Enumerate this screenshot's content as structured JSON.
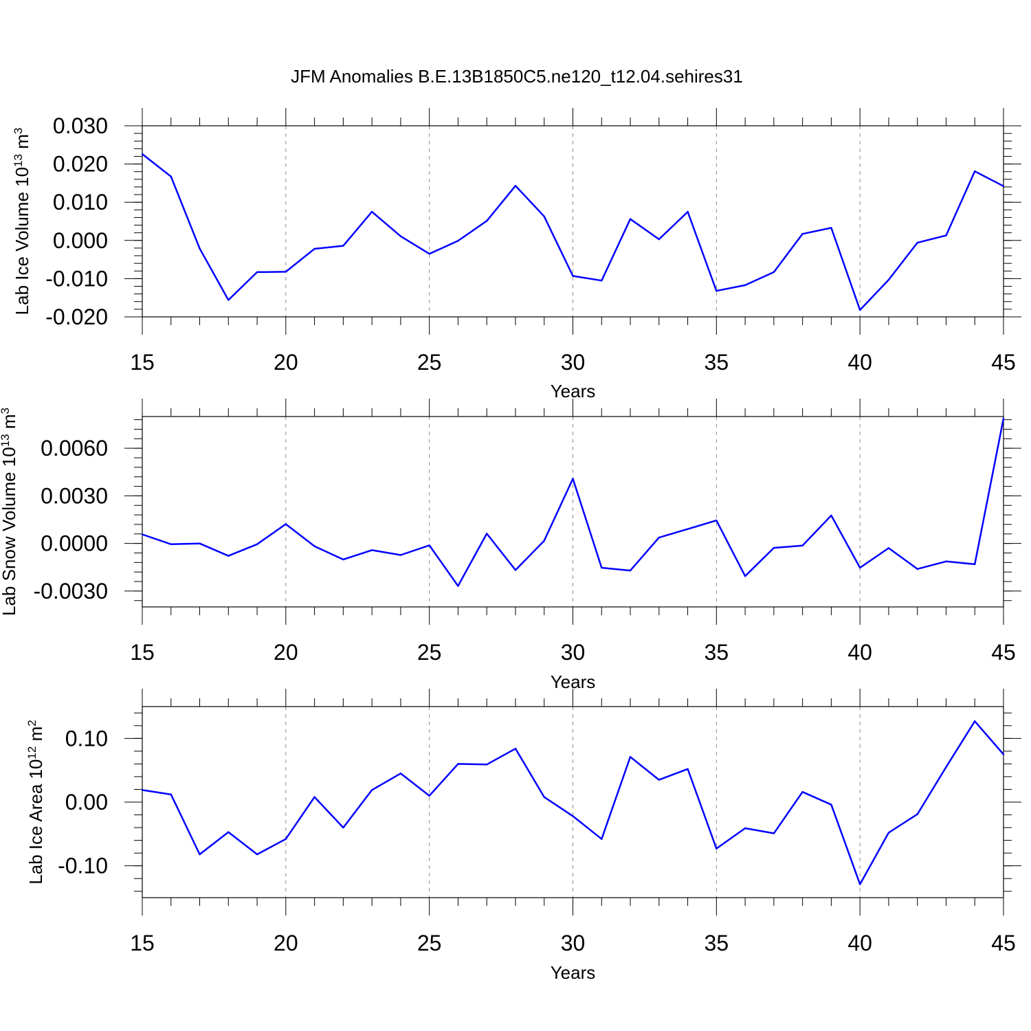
{
  "title": "JFM Anomalies B.E.13B1850C5.ne120_t12.04.sehires31",
  "colors": {
    "line": "#0000ff",
    "axis": "#000000",
    "grid": "#888888"
  },
  "chart_data": [
    {
      "type": "line",
      "ylabel": {
        "main": "Lab Ice Volume 10",
        "exp": "13",
        "unit": " m",
        "unit_exp": "3"
      },
      "xlabel": "Years",
      "xlim": [
        15,
        45
      ],
      "ylim": [
        -0.02,
        0.03
      ],
      "x_ticks": [
        "15",
        "20",
        "25",
        "30",
        "35",
        "40",
        "45"
      ],
      "y_ticks": [
        "0.030",
        "0.020",
        "0.010",
        "0.000",
        "-0.010",
        "-0.020"
      ],
      "y_tick_values": [
        0.03,
        0.02,
        0.01,
        0.0,
        -0.01,
        -0.02
      ],
      "y_minor_step": 0.002,
      "grid": "vertical-dashed",
      "x": [
        15,
        16,
        17,
        18,
        19,
        20,
        21,
        22,
        23,
        24,
        25,
        26,
        27,
        28,
        29,
        30,
        31,
        32,
        33,
        34,
        35,
        36,
        37,
        38,
        39,
        40,
        41,
        42,
        43,
        44,
        45
      ],
      "values": [
        0.0226,
        0.0167,
        -0.0021,
        -0.0156,
        -0.0083,
        -0.0082,
        -0.0022,
        -0.0014,
        0.0075,
        0.0011,
        -0.0035,
        -0.0001,
        0.0051,
        0.0143,
        0.0063,
        -0.0093,
        -0.0105,
        0.0056,
        0.0003,
        0.0075,
        -0.0132,
        -0.0117,
        -0.0083,
        0.0017,
        0.0033,
        -0.0182,
        -0.0103,
        -0.0006,
        0.0013,
        0.0181,
        0.0142
      ]
    },
    {
      "type": "line",
      "ylabel": {
        "main": "Lab Snow Volume 10",
        "exp": "13",
        "unit": " m",
        "unit_exp": "3"
      },
      "xlabel": "Years",
      "xlim": [
        15,
        45
      ],
      "ylim": [
        -0.004,
        0.008
      ],
      "x_ticks": [
        "15",
        "20",
        "25",
        "30",
        "35",
        "40",
        "45"
      ],
      "y_ticks": [
        "0.0060",
        "0.0030",
        "0.0000",
        "-0.0030"
      ],
      "y_tick_values": [
        0.006,
        0.003,
        0.0,
        -0.003
      ],
      "y_minor_step": 0.0006,
      "grid": "vertical-dashed",
      "x": [
        15,
        16,
        17,
        18,
        19,
        20,
        21,
        22,
        23,
        24,
        25,
        26,
        27,
        28,
        29,
        30,
        31,
        32,
        33,
        34,
        35,
        36,
        37,
        38,
        39,
        40,
        41,
        42,
        43,
        44,
        45
      ],
      "values": [
        0.00057,
        -5e-05,
        0.0,
        -0.00078,
        -5e-05,
        0.00122,
        -0.00018,
        -0.00101,
        -0.00042,
        -0.00073,
        -0.00012,
        -0.00268,
        0.00062,
        -0.00168,
        0.00017,
        0.00408,
        -0.00153,
        -0.00171,
        0.00037,
        0.00091,
        0.00145,
        -0.00206,
        -0.00028,
        -0.00013,
        0.00176,
        -0.00153,
        -0.00029,
        -0.00161,
        -0.00113,
        -0.00131,
        0.00788
      ]
    },
    {
      "type": "line",
      "ylabel": {
        "main": "Lab Ice Area 10",
        "exp": "12",
        "unit": " m",
        "unit_exp": "2"
      },
      "xlabel": "Years",
      "xlim": [
        15,
        45
      ],
      "ylim": [
        -0.15,
        0.15
      ],
      "x_ticks": [
        "15",
        "20",
        "25",
        "30",
        "35",
        "40",
        "45"
      ],
      "y_ticks": [
        "0.10",
        "0.00",
        "-0.10"
      ],
      "y_tick_values": [
        0.1,
        0.0,
        -0.1
      ],
      "y_minor_step": 0.02,
      "grid": "vertical-dashed",
      "x": [
        15,
        16,
        17,
        18,
        19,
        20,
        21,
        22,
        23,
        24,
        25,
        26,
        27,
        28,
        29,
        30,
        31,
        32,
        33,
        34,
        35,
        36,
        37,
        38,
        39,
        40,
        41,
        42,
        43,
        44,
        45
      ],
      "values": [
        0.019,
        0.012,
        -0.082,
        -0.047,
        -0.082,
        -0.058,
        0.008,
        -0.04,
        0.019,
        0.045,
        0.01,
        0.06,
        0.059,
        0.084,
        0.008,
        -0.022,
        -0.058,
        0.071,
        0.035,
        0.052,
        -0.073,
        -0.041,
        -0.049,
        0.016,
        -0.004,
        -0.129,
        -0.048,
        -0.019,
        0.055,
        0.127,
        0.075
      ]
    }
  ]
}
